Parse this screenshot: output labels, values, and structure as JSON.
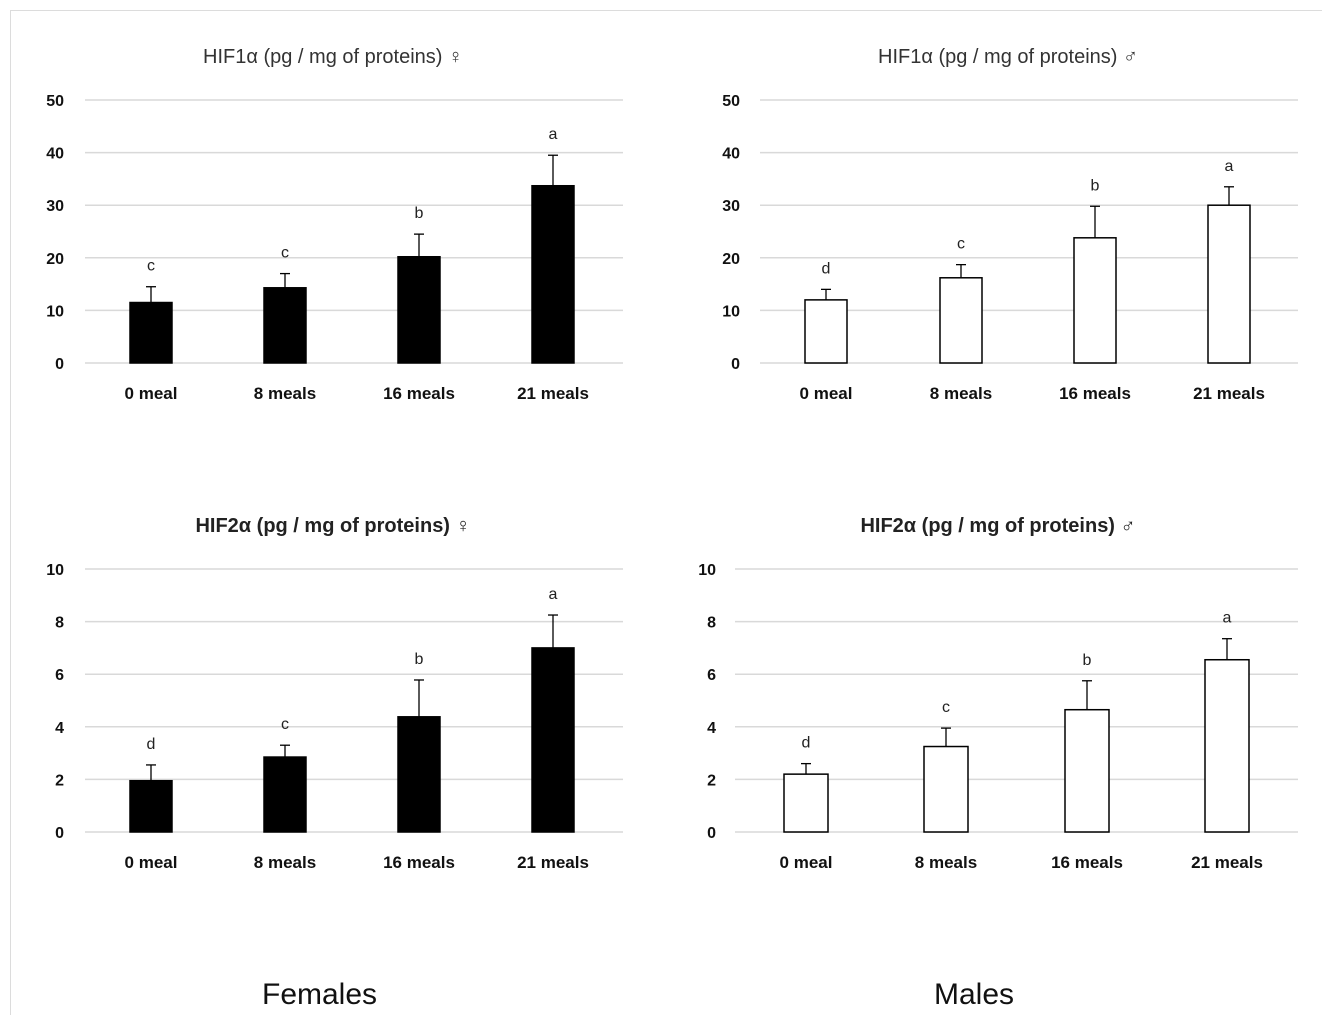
{
  "group_labels": {
    "females": "Females",
    "males": "Males"
  },
  "colors": {
    "female_bar": "#000000",
    "male_bar": "#ffffff",
    "bar_edge": "#000000",
    "grid": "#d9d9d9"
  },
  "chart_data": [
    {
      "type": "bar",
      "title": "HIF1α (pg / mg of proteins) ♀",
      "categories": [
        "0 meal",
        "8 meals",
        "16 meals",
        "21 meals"
      ],
      "values": [
        11.5,
        14.3,
        20.2,
        33.7
      ],
      "errors": [
        3.0,
        2.7,
        4.3,
        5.8
      ],
      "significance": [
        "c",
        "c",
        "b",
        "a"
      ],
      "yticks": [
        0,
        10,
        20,
        30,
        40,
        50
      ],
      "ylim": [
        0,
        50
      ],
      "grid": true
    },
    {
      "type": "bar",
      "title": "HIF1α (pg / mg of proteins) ♂",
      "categories": [
        "0 meal",
        "8 meals",
        "16 meals",
        "21 meals"
      ],
      "values": [
        12.0,
        16.2,
        23.8,
        30.0
      ],
      "errors": [
        2.0,
        2.5,
        6.0,
        3.5
      ],
      "significance": [
        "d",
        "c",
        "b",
        "a"
      ],
      "yticks": [
        0,
        10,
        20,
        30,
        40,
        50
      ],
      "ylim": [
        0,
        50
      ],
      "grid": true
    },
    {
      "type": "bar",
      "title": "HIF2α (pg / mg of proteins) ♀",
      "categories": [
        "0 meal",
        "8 meals",
        "16 meals",
        "21 meals"
      ],
      "values": [
        1.95,
        2.85,
        4.38,
        7.0
      ],
      "errors": [
        0.6,
        0.45,
        1.4,
        1.25
      ],
      "significance": [
        "d",
        "c",
        "b",
        "a"
      ],
      "yticks": [
        0,
        2,
        4,
        6,
        8,
        10
      ],
      "ylim": [
        0,
        10
      ],
      "grid": true
    },
    {
      "type": "bar",
      "title": "HIF2α (pg / mg of proteins) ♂",
      "categories": [
        "0 meal",
        "8 meals",
        "16 meals",
        "21 meals"
      ],
      "values": [
        2.2,
        3.25,
        4.65,
        6.55
      ],
      "errors": [
        0.4,
        0.7,
        1.1,
        0.8
      ],
      "significance": [
        "d",
        "c",
        "b",
        "a"
      ],
      "yticks": [
        0,
        2,
        4,
        6,
        8,
        10
      ],
      "ylim": [
        0,
        10
      ],
      "grid": true
    }
  ]
}
